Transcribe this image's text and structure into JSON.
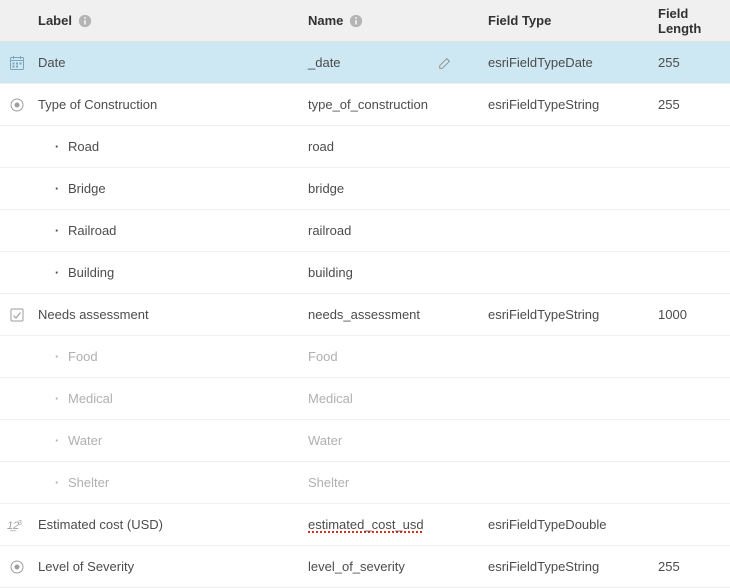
{
  "headers": {
    "label": "Label",
    "name": "Name",
    "type": "Field Type",
    "length": "Field Length"
  },
  "rows": [
    {
      "icon": "date",
      "label": "Date",
      "name": "_date",
      "type": "esriFieldTypeDate",
      "length": "255",
      "selected": true,
      "editIcon": true
    },
    {
      "icon": "radio",
      "label": "Type of Construction",
      "name": "type_of_construction",
      "type": "esriFieldTypeString",
      "length": "255",
      "children": [
        {
          "label": "Road",
          "name": "road"
        },
        {
          "label": "Bridge",
          "name": "bridge"
        },
        {
          "label": "Railroad",
          "name": "railroad"
        },
        {
          "label": "Building",
          "name": "building"
        }
      ]
    },
    {
      "icon": "checkbox",
      "label": "Needs assessment",
      "name": "needs_assessment",
      "type": "esriFieldTypeString",
      "length": "1000",
      "childrenMuted": true,
      "children": [
        {
          "label": "Food",
          "name": "Food"
        },
        {
          "label": "Medical",
          "name": "Medical"
        },
        {
          "label": "Water",
          "name": "Water"
        },
        {
          "label": "Shelter",
          "name": "Shelter"
        }
      ]
    },
    {
      "icon": "numeric",
      "label": "Estimated cost (USD)",
      "name": "estimated_cost_usd",
      "underlineRed": true,
      "type": "esriFieldTypeDouble",
      "length": ""
    },
    {
      "icon": "radio",
      "label": "Level of Severity",
      "name": "level_of_severity",
      "type": "esriFieldTypeString",
      "length": "255"
    }
  ]
}
